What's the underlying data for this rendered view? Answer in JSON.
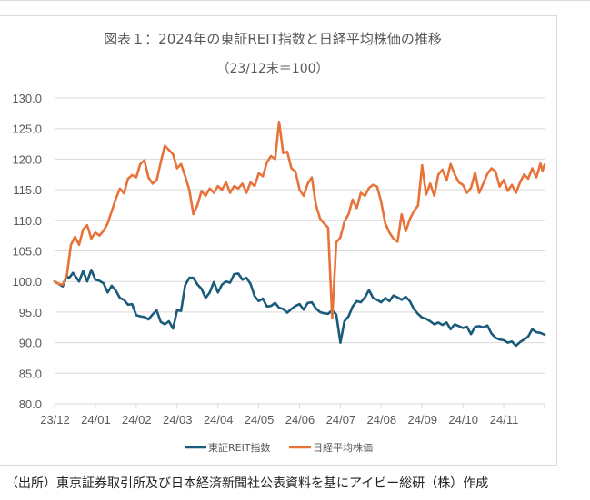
{
  "chart_data": {
    "type": "line",
    "title": "図表１：2024年の東証REIT指数と日経平均株価の推移",
    "subtitle": "（23/12末＝100）",
    "xlabel": "",
    "ylabel": "",
    "ylim": [
      80,
      130
    ],
    "yticks": [
      "130.0",
      "125.0",
      "120.0",
      "115.0",
      "110.0",
      "105.0",
      "100.0",
      "95.0",
      "90.0",
      "85.0",
      "80.0"
    ],
    "ytick_values": [
      130,
      125,
      120,
      115,
      110,
      105,
      100,
      95,
      90,
      85,
      80
    ],
    "categories": [
      "23/12",
      "24/01",
      "24/02",
      "24/03",
      "24/04",
      "24/05",
      "24/06",
      "24/07",
      "24/08",
      "24/09",
      "24/10",
      "24/11"
    ],
    "x_range_months": [
      0,
      12
    ],
    "grid": true,
    "legend": "bottom",
    "series": [
      {
        "name": "東証REIT指数",
        "color": "#1a5a7a",
        "x": [
          0,
          0.1,
          0.2,
          0.3,
          0.35,
          0.45,
          0.6,
          0.7,
          0.8,
          0.9,
          1.0,
          1.1,
          1.2,
          1.3,
          1.4,
          1.5,
          1.6,
          1.7,
          1.8,
          1.9,
          2.0,
          2.1,
          2.2,
          2.3,
          2.4,
          2.5,
          2.6,
          2.7,
          2.8,
          2.9,
          3.0,
          3.1,
          3.2,
          3.3,
          3.4,
          3.5,
          3.6,
          3.7,
          3.8,
          3.9,
          4.0,
          4.1,
          4.2,
          4.3,
          4.4,
          4.5,
          4.6,
          4.7,
          4.8,
          4.9,
          5.0,
          5.1,
          5.2,
          5.3,
          5.4,
          5.5,
          5.6,
          5.7,
          5.8,
          5.9,
          6.0,
          6.1,
          6.2,
          6.3,
          6.4,
          6.5,
          6.6,
          6.7,
          6.8,
          6.9,
          7.0,
          7.1,
          7.2,
          7.3,
          7.4,
          7.5,
          7.6,
          7.7,
          7.8,
          7.9,
          8.0,
          8.1,
          8.2,
          8.3,
          8.4,
          8.5,
          8.6,
          8.7,
          8.8,
          8.9,
          9.0,
          9.1,
          9.2,
          9.3,
          9.4,
          9.5,
          9.6,
          9.7,
          9.8,
          9.9,
          10.0,
          10.1,
          10.2,
          10.3,
          10.4,
          10.5,
          10.6,
          10.7,
          10.8,
          10.9,
          11.0,
          11.1,
          11.2,
          11.3,
          11.4,
          11.5,
          11.6,
          11.7,
          11.8,
          11.9,
          12.0
        ],
        "values": [
          100.0,
          99.6,
          99.2,
          100.9,
          100.5,
          101.4,
          100.0,
          101.7,
          100.0,
          101.9,
          100.3,
          100.1,
          99.7,
          98.2,
          99.3,
          98.5,
          97.3,
          97.0,
          96.2,
          96.3,
          94.5,
          94.3,
          94.2,
          93.8,
          94.6,
          95.3,
          93.4,
          93.0,
          93.5,
          92.3,
          95.3,
          95.2,
          99.4,
          100.6,
          100.6,
          99.5,
          98.8,
          97.3,
          98.2,
          99.9,
          98.2,
          99.5,
          100.0,
          99.8,
          101.2,
          101.3,
          100.3,
          100.6,
          99.6,
          97.6,
          96.8,
          97.2,
          95.9,
          96.0,
          96.5,
          95.7,
          95.5,
          94.9,
          95.5,
          96.0,
          96.3,
          95.4,
          96.5,
          96.6,
          95.6,
          95.0,
          94.8,
          94.7,
          95.3,
          94.6,
          90.0,
          93.5,
          94.3,
          95.9,
          96.8,
          96.6,
          97.4,
          98.6,
          97.3,
          97.0,
          96.6,
          97.3,
          96.8,
          97.7,
          97.4,
          97.0,
          97.5,
          96.8,
          95.5,
          94.7,
          94.1,
          93.9,
          93.5,
          93.0,
          93.3,
          92.9,
          93.3,
          92.2,
          93.0,
          92.7,
          92.4,
          92.6,
          91.4,
          92.6,
          92.7,
          92.5,
          92.8,
          91.5,
          90.8,
          90.5,
          90.4,
          90.0,
          90.2,
          89.5,
          90.1,
          90.5,
          91.0,
          92.2,
          91.7,
          91.6,
          91.3
        ]
      },
      {
        "name": "日経平均株価",
        "color": "#e8733a",
        "x": [
          0,
          0.1,
          0.2,
          0.3,
          0.4,
          0.5,
          0.6,
          0.7,
          0.8,
          0.9,
          1.0,
          1.1,
          1.2,
          1.3,
          1.4,
          1.5,
          1.6,
          1.7,
          1.8,
          1.9,
          2.0,
          2.1,
          2.2,
          2.3,
          2.4,
          2.5,
          2.6,
          2.7,
          2.8,
          2.9,
          3.0,
          3.1,
          3.2,
          3.3,
          3.4,
          3.5,
          3.6,
          3.7,
          3.8,
          3.9,
          4.0,
          4.1,
          4.2,
          4.3,
          4.4,
          4.5,
          4.6,
          4.7,
          4.8,
          4.9,
          5.0,
          5.1,
          5.2,
          5.3,
          5.4,
          5.5,
          5.6,
          5.7,
          5.8,
          5.9,
          6.0,
          6.1,
          6.2,
          6.3,
          6.4,
          6.5,
          6.6,
          6.7,
          6.8,
          6.9,
          7.0,
          7.1,
          7.2,
          7.3,
          7.4,
          7.5,
          7.6,
          7.7,
          7.8,
          7.9,
          8.0,
          8.1,
          8.2,
          8.3,
          8.4,
          8.5,
          8.6,
          8.7,
          8.8,
          8.9,
          9.0,
          9.1,
          9.2,
          9.3,
          9.4,
          9.5,
          9.6,
          9.7,
          9.8,
          9.9,
          10.0,
          10.1,
          10.2,
          10.3,
          10.4,
          10.5,
          10.6,
          10.7,
          10.8,
          10.9,
          11.0,
          11.1,
          11.2,
          11.3,
          11.4,
          11.5,
          11.6,
          11.7,
          11.8,
          11.9,
          11.95,
          12.0
        ],
        "values": [
          100.0,
          99.6,
          99.5,
          101.0,
          106.0,
          107.3,
          106.0,
          108.5,
          109.2,
          107.0,
          108.0,
          107.5,
          108.3,
          109.5,
          111.5,
          113.5,
          115.2,
          114.4,
          116.8,
          117.4,
          117.0,
          119.2,
          119.8,
          117.0,
          116.0,
          116.5,
          119.5,
          122.2,
          121.5,
          120.8,
          118.5,
          119.2,
          117.2,
          115.0,
          111.0,
          112.5,
          114.8,
          114.0,
          115.2,
          114.5,
          115.6,
          115.0,
          116.2,
          114.5,
          115.6,
          115.2,
          116.0,
          114.5,
          116.2,
          115.6,
          117.7,
          117.2,
          119.5,
          120.5,
          120.0,
          126.1,
          121.0,
          121.2,
          118.5,
          118.0,
          115.0,
          114.0,
          116.0,
          117.0,
          112.5,
          110.3,
          109.5,
          108.8,
          94.0,
          106.4,
          107.2,
          109.8,
          111.0,
          113.4,
          112.0,
          114.5,
          114.0,
          115.3,
          115.8,
          115.5,
          113.0,
          109.5,
          108.0,
          107.0,
          106.5,
          111.0,
          108.2,
          110.2,
          111.5,
          112.4,
          119.0,
          114.2,
          116.0,
          114.0,
          117.5,
          118.3,
          116.5,
          119.2,
          117.5,
          116.2,
          115.8,
          114.5,
          115.3,
          117.8,
          114.5,
          116.0,
          117.6,
          118.5,
          118.0,
          115.5,
          116.6,
          114.8,
          115.8,
          114.5,
          116.2,
          117.5,
          116.8,
          118.5,
          117.0,
          119.3,
          118.1,
          119.1
        ]
      }
    ]
  },
  "source_note": "（出所）東京証券取引所及び日本経済新聞社公表資料を基にアイビー総研（株）作成"
}
